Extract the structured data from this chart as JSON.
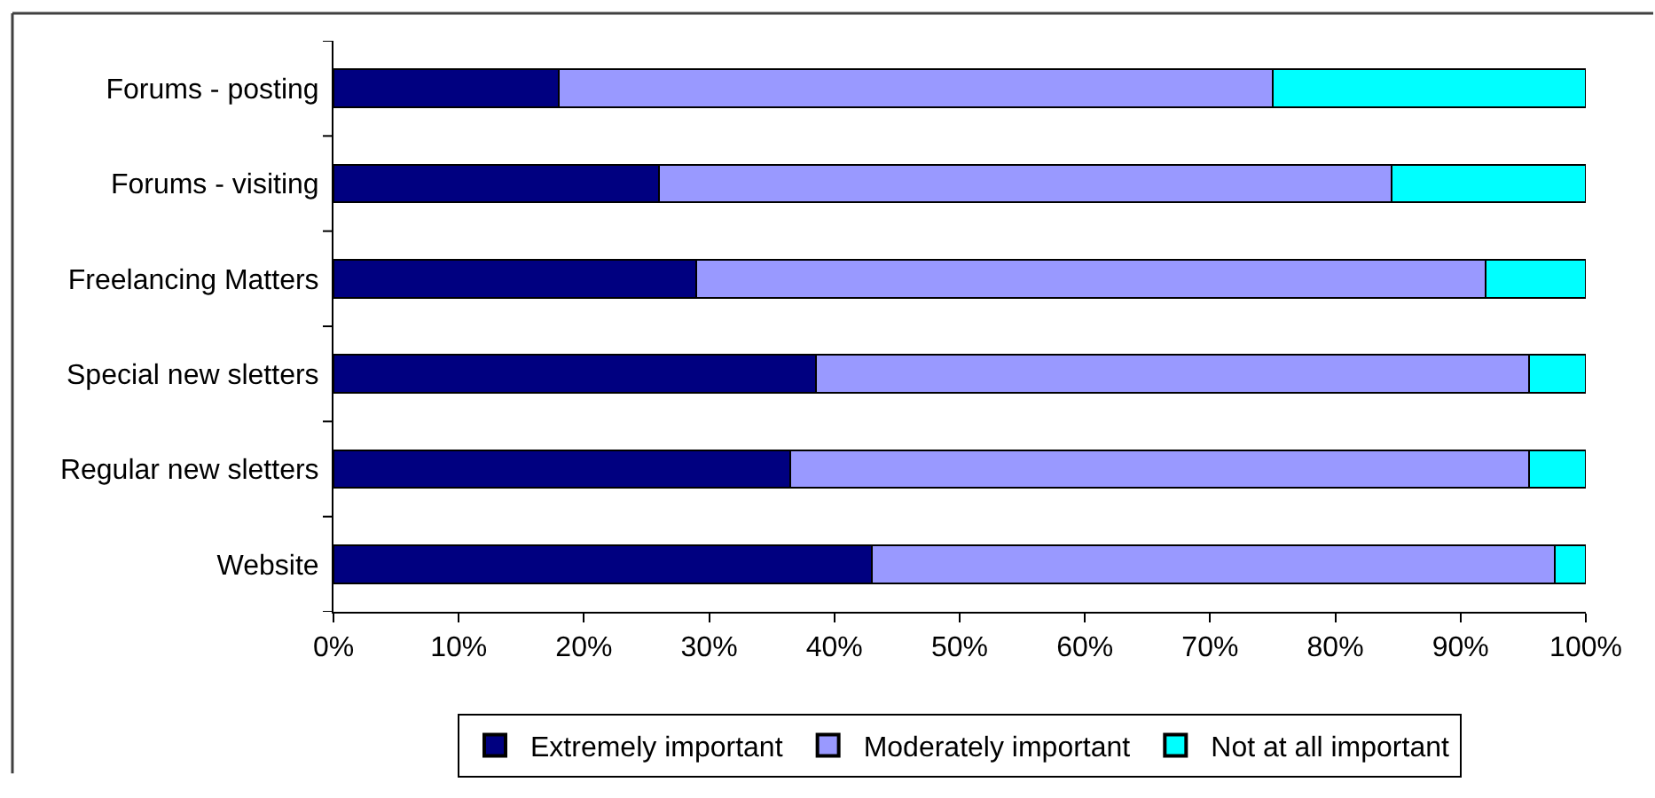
{
  "chart_data": {
    "type": "bar",
    "orientation": "horizontal",
    "stacked": true,
    "categories": [
      "Forums - posting",
      "Forums - visiting",
      "Freelancing Matters",
      "Special new sletters",
      "Regular new sletters",
      "Website"
    ],
    "series": [
      {
        "name": "Extremely important",
        "color": "#000080",
        "values": [
          18,
          26,
          29,
          38.5,
          36.5,
          43
        ]
      },
      {
        "name": "Moderately important",
        "color": "#9999ff",
        "values": [
          57,
          58.5,
          63,
          57,
          59,
          54.5
        ]
      },
      {
        "name": "Not at all important",
        "color": "#00ffff",
        "values": [
          25,
          15.5,
          8,
          4.5,
          4.5,
          2.5
        ]
      }
    ],
    "xlim": [
      0,
      100
    ],
    "xticks": [
      {
        "value": 0,
        "label": "0%"
      },
      {
        "value": 10,
        "label": "10%"
      },
      {
        "value": 20,
        "label": "20%"
      },
      {
        "value": 30,
        "label": "30%"
      },
      {
        "value": 40,
        "label": "40%"
      },
      {
        "value": 50,
        "label": "50%"
      },
      {
        "value": 60,
        "label": "60%"
      },
      {
        "value": 70,
        "label": "70%"
      },
      {
        "value": 80,
        "label": "80%"
      },
      {
        "value": 90,
        "label": "90%"
      },
      {
        "value": 100,
        "label": "100%"
      }
    ],
    "legend": "bottom"
  }
}
